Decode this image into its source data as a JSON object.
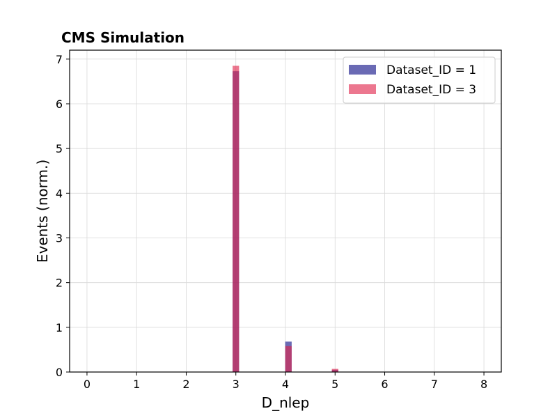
{
  "chart_data": {
    "type": "bar",
    "title": "CMS Simulation",
    "xlabel": "D_nlep",
    "ylabel": "Events (norm.)",
    "xlim": [
      -0.35,
      8.35
    ],
    "ylim": [
      0,
      7.2
    ],
    "xticks": [
      "0",
      "1",
      "2",
      "3",
      "4",
      "5",
      "6",
      "7",
      "8"
    ],
    "yticks": [
      "0",
      "1",
      "2",
      "3",
      "4",
      "5",
      "6",
      "7"
    ],
    "grid": true,
    "legend_position": "top-right",
    "bin_width": 0.13,
    "series": [
      {
        "name": "Dataset_ID = 1",
        "color": "#1a1a8c",
        "opacity": 0.65,
        "bins": [
          {
            "x": 3.0,
            "value": 6.73
          },
          {
            "x": 4.06,
            "value": 0.68
          },
          {
            "x": 5.0,
            "value": 0.05
          }
        ]
      },
      {
        "name": "Dataset_ID = 3",
        "color": "#e0244a",
        "opacity": 0.62,
        "bins": [
          {
            "x": 3.0,
            "value": 6.85
          },
          {
            "x": 4.06,
            "value": 0.58
          },
          {
            "x": 5.0,
            "value": 0.07
          }
        ]
      }
    ]
  }
}
